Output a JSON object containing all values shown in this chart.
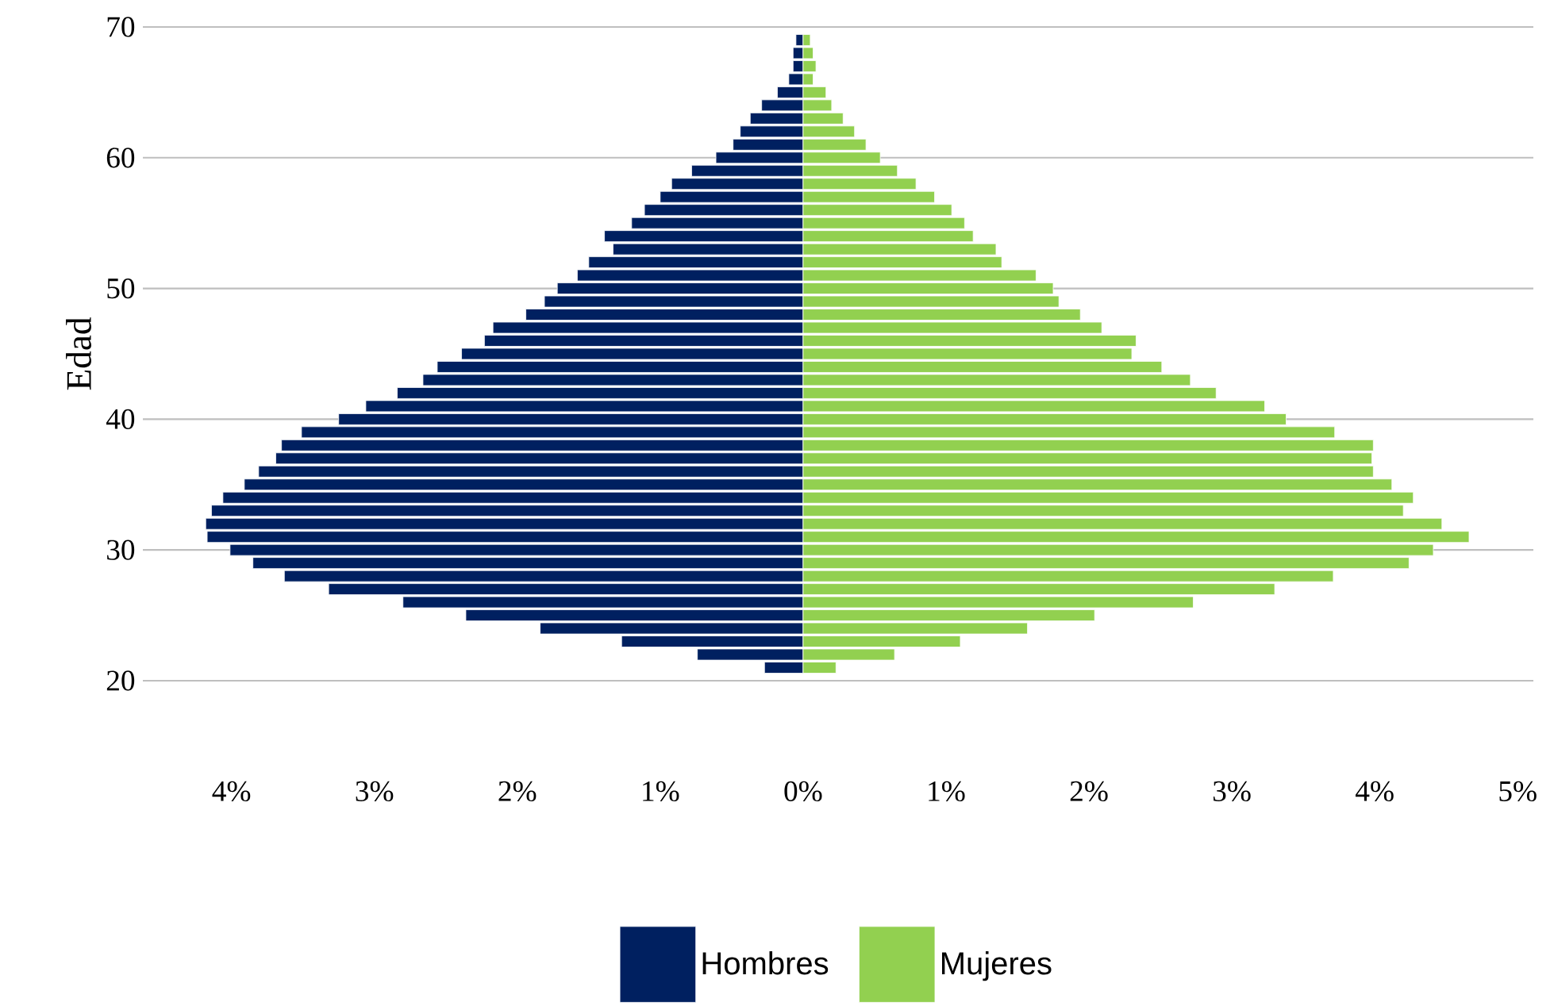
{
  "chart_data": {
    "type": "bar",
    "orientation": "horizontal",
    "ylabel": "Edad",
    "x": [
      21,
      22,
      23,
      24,
      25,
      26,
      27,
      28,
      29,
      30,
      31,
      32,
      33,
      34,
      35,
      36,
      37,
      38,
      39,
      40,
      41,
      42,
      43,
      44,
      45,
      46,
      47,
      48,
      49,
      50,
      51,
      52,
      53,
      54,
      55,
      56,
      57,
      58,
      59,
      60,
      61,
      62,
      63,
      64,
      65,
      66,
      67,
      68,
      69
    ],
    "series": [
      {
        "name": "Hombres",
        "color": "#002060",
        "values": [
          -0.27,
          -0.74,
          -1.27,
          -1.84,
          -2.36,
          -2.8,
          -3.32,
          -3.63,
          -3.85,
          -4.01,
          -4.17,
          -4.18,
          -4.14,
          -4.06,
          -3.91,
          -3.81,
          -3.69,
          -3.65,
          -3.51,
          -3.25,
          -3.06,
          -2.84,
          -2.66,
          -2.56,
          -2.39,
          -2.23,
          -2.17,
          -1.94,
          -1.81,
          -1.72,
          -1.58,
          -1.5,
          -1.33,
          -1.39,
          -1.2,
          -1.11,
          -1.0,
          -0.92,
          -0.78,
          -0.61,
          -0.49,
          -0.44,
          -0.37,
          -0.29,
          -0.18,
          -0.1,
          -0.07,
          -0.07,
          -0.05
        ]
      },
      {
        "name": "Mujeres",
        "color": "#92d050",
        "values": [
          0.23,
          0.64,
          1.1,
          1.57,
          2.04,
          2.73,
          3.3,
          3.71,
          4.24,
          4.41,
          4.66,
          4.47,
          4.2,
          4.27,
          4.12,
          3.99,
          3.98,
          3.99,
          3.72,
          3.38,
          3.23,
          2.89,
          2.71,
          2.51,
          2.3,
          2.33,
          2.09,
          1.94,
          1.79,
          1.75,
          1.63,
          1.39,
          1.35,
          1.19,
          1.13,
          1.04,
          0.92,
          0.79,
          0.66,
          0.54,
          0.44,
          0.36,
          0.28,
          0.2,
          0.16,
          0.07,
          0.09,
          0.07,
          0.05
        ]
      }
    ],
    "xlim": [
      -4.62,
      5.11
    ],
    "xticks": [
      {
        "value": -4,
        "label": "4%"
      },
      {
        "value": -3,
        "label": "3%"
      },
      {
        "value": -2,
        "label": "2%"
      },
      {
        "value": -1,
        "label": "1%"
      },
      {
        "value": 0,
        "label": "0%"
      },
      {
        "value": 1,
        "label": "1%"
      },
      {
        "value": 2,
        "label": "2%"
      },
      {
        "value": 3,
        "label": "3%"
      },
      {
        "value": 4,
        "label": "4%"
      },
      {
        "value": 5,
        "label": "5%"
      }
    ],
    "ylim": [
      20,
      70
    ],
    "yticks": [
      20,
      30,
      40,
      50,
      60,
      70
    ],
    "grid": "y",
    "legend": "bottom",
    "stacked": true
  }
}
